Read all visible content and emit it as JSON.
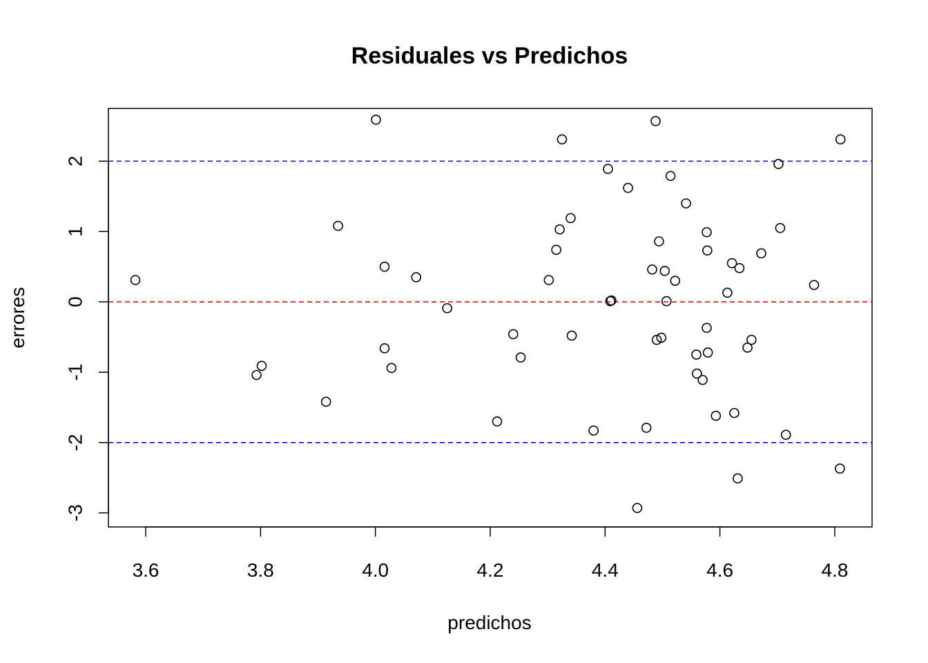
{
  "chart_data": {
    "type": "scatter",
    "title": "Residuales vs Predichos",
    "xlabel": "predichos",
    "ylabel": "errores",
    "xlim": [
      3.535,
      4.865
    ],
    "ylim": [
      -3.2,
      2.75
    ],
    "x_ticks": [
      3.6,
      3.8,
      4.0,
      4.2,
      4.4,
      4.6,
      4.8
    ],
    "x_tick_labels": [
      "3.6",
      "3.8",
      "4.0",
      "4.2",
      "4.4",
      "4.6",
      "4.8"
    ],
    "y_ticks": [
      -3,
      -2,
      -1,
      0,
      1,
      2
    ],
    "y_tick_labels": [
      "-3",
      "-2",
      "-1",
      "0",
      "1",
      "2"
    ],
    "reference_lines": [
      {
        "name": "upper-limit",
        "y": 2,
        "color": "#0000ff",
        "style": "dashed"
      },
      {
        "name": "zero",
        "y": 0,
        "color": "#ff0000",
        "style": "dashed"
      },
      {
        "name": "lower-limit",
        "y": -2,
        "color": "#0000ff",
        "style": "dashed"
      }
    ],
    "points": [
      {
        "x": 3.582,
        "y": 0.31
      },
      {
        "x": 3.793,
        "y": -1.04
      },
      {
        "x": 3.802,
        "y": -0.91
      },
      {
        "x": 3.914,
        "y": -1.42
      },
      {
        "x": 3.935,
        "y": 1.08
      },
      {
        "x": 4.001,
        "y": 2.59
      },
      {
        "x": 4.016,
        "y": 0.5
      },
      {
        "x": 4.016,
        "y": -0.66
      },
      {
        "x": 4.028,
        "y": -0.94
      },
      {
        "x": 4.071,
        "y": 0.35
      },
      {
        "x": 4.125,
        "y": -0.09
      },
      {
        "x": 4.212,
        "y": -1.7
      },
      {
        "x": 4.24,
        "y": -0.46
      },
      {
        "x": 4.253,
        "y": -0.79
      },
      {
        "x": 4.302,
        "y": 0.31
      },
      {
        "x": 4.315,
        "y": 0.74
      },
      {
        "x": 4.321,
        "y": 1.03
      },
      {
        "x": 4.325,
        "y": 2.31
      },
      {
        "x": 4.34,
        "y": 1.19
      },
      {
        "x": 4.342,
        "y": -0.48
      },
      {
        "x": 4.38,
        "y": -1.83
      },
      {
        "x": 4.405,
        "y": 1.89
      },
      {
        "x": 4.409,
        "y": 0.01
      },
      {
        "x": 4.411,
        "y": 0.02
      },
      {
        "x": 4.44,
        "y": 1.62
      },
      {
        "x": 4.456,
        "y": -2.93
      },
      {
        "x": 4.472,
        "y": -1.79
      },
      {
        "x": 4.482,
        "y": 0.46
      },
      {
        "x": 4.488,
        "y": 2.57
      },
      {
        "x": 4.49,
        "y": -0.54
      },
      {
        "x": 4.494,
        "y": 0.86
      },
      {
        "x": 4.498,
        "y": -0.51
      },
      {
        "x": 4.504,
        "y": 0.44
      },
      {
        "x": 4.507,
        "y": 0.01
      },
      {
        "x": 4.514,
        "y": 1.79
      },
      {
        "x": 4.522,
        "y": 0.3
      },
      {
        "x": 4.541,
        "y": 1.4
      },
      {
        "x": 4.559,
        "y": -0.75
      },
      {
        "x": 4.56,
        "y": -1.02
      },
      {
        "x": 4.57,
        "y": -1.11
      },
      {
        "x": 4.577,
        "y": 0.99
      },
      {
        "x": 4.577,
        "y": -0.37
      },
      {
        "x": 4.578,
        "y": 0.73
      },
      {
        "x": 4.579,
        "y": -0.72
      },
      {
        "x": 4.593,
        "y": -1.62
      },
      {
        "x": 4.613,
        "y": 0.13
      },
      {
        "x": 4.621,
        "y": 0.55
      },
      {
        "x": 4.625,
        "y": -1.58
      },
      {
        "x": 4.631,
        "y": -2.51
      },
      {
        "x": 4.634,
        "y": 0.48
      },
      {
        "x": 4.648,
        "y": -0.65
      },
      {
        "x": 4.655,
        "y": -0.54
      },
      {
        "x": 4.672,
        "y": 0.69
      },
      {
        "x": 4.702,
        "y": 1.96
      },
      {
        "x": 4.705,
        "y": 1.05
      },
      {
        "x": 4.715,
        "y": -1.89
      },
      {
        "x": 4.764,
        "y": 0.24
      },
      {
        "x": 4.81,
        "y": 2.31
      },
      {
        "x": 4.809,
        "y": -2.37
      }
    ]
  }
}
